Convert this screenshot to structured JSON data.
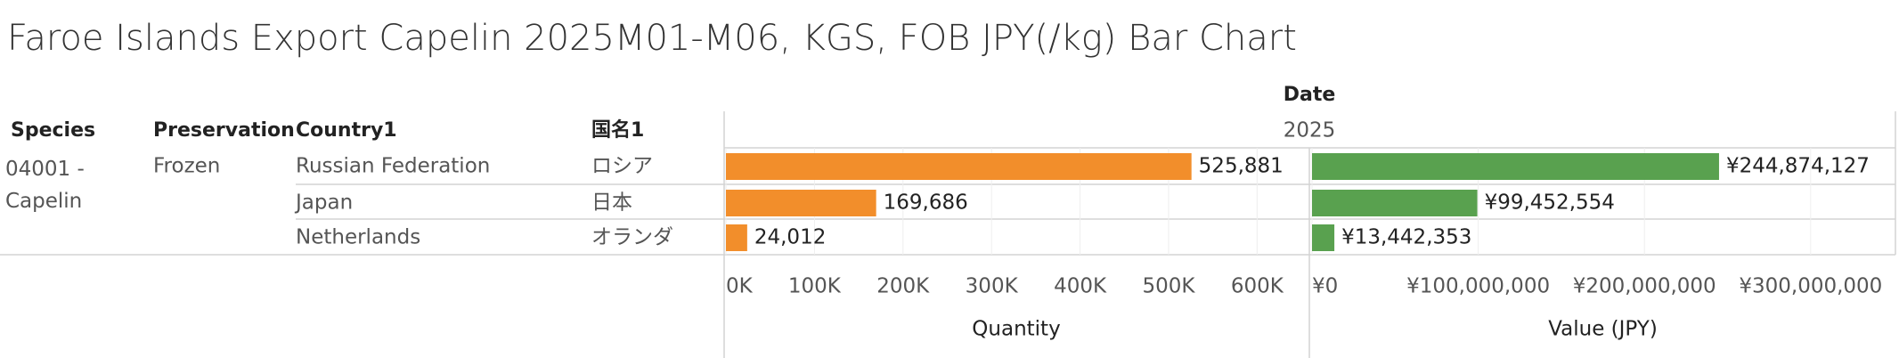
{
  "chart_data": {
    "type": "bar",
    "title": "Faroe Islands Export Capelin 2025M01-M06, KGS, FOB JPY(/kg) Bar Chart",
    "column_header": "Date",
    "column_value": "2025",
    "row_headers": [
      "Species",
      "Preservation",
      "Country1",
      "国名1"
    ],
    "species": "04001 - Capelin",
    "preservation": "Frozen",
    "categories": [
      "Russian Federation",
      "Japan",
      "Netherlands"
    ],
    "names_ja": [
      "ロシア",
      "日本",
      "オランダ"
    ],
    "panels": [
      {
        "name": "Quantity",
        "color": "#f28e2b",
        "values": [
          525881,
          169686,
          24012
        ],
        "value_labels": [
          "525,881",
          "169,686",
          "24,012"
        ],
        "xlim": [
          0,
          658000
        ],
        "xticks": [
          {
            "value": 0,
            "label": "0K"
          },
          {
            "value": 100000,
            "label": "100K"
          },
          {
            "value": 200000,
            "label": "200K"
          },
          {
            "value": 300000,
            "label": "300K"
          },
          {
            "value": 400000,
            "label": "400K"
          },
          {
            "value": 500000,
            "label": "500K"
          },
          {
            "value": 600000,
            "label": "600K"
          }
        ]
      },
      {
        "name": "Value (JPY)",
        "color": "#59a14f",
        "values": [
          244874127,
          99452554,
          13442353
        ],
        "value_labels": [
          "¥244,874,127",
          "¥99,452,554",
          "¥13,442,353"
        ],
        "xlim": [
          0,
          351000000
        ],
        "xticks": [
          {
            "value": 0,
            "label": "¥0"
          },
          {
            "value": 100000000,
            "label": "¥100,000,000"
          },
          {
            "value": 200000000,
            "label": "¥200,000,000"
          },
          {
            "value": 300000000,
            "label": "¥300,000,000"
          }
        ]
      }
    ],
    "grid": true
  }
}
